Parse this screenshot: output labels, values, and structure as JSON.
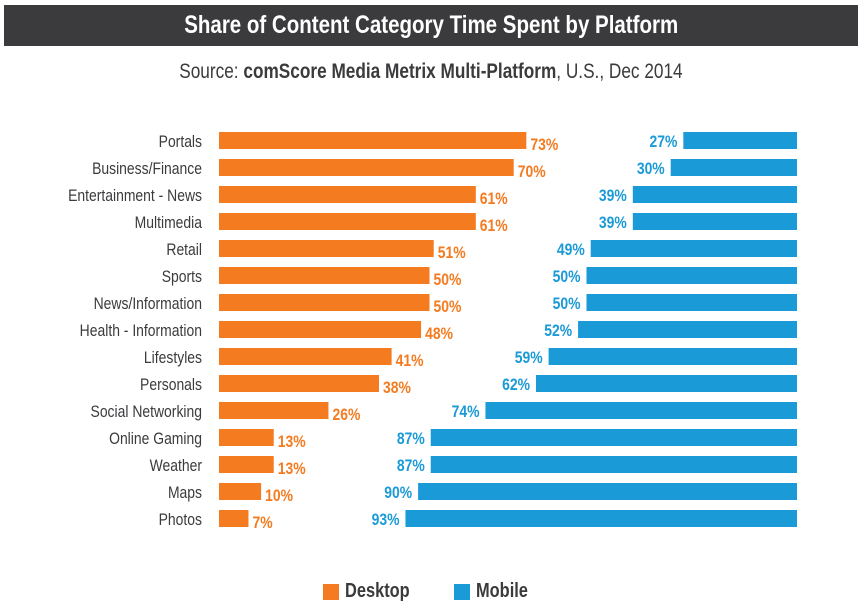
{
  "chart_data": {
    "type": "bar",
    "stacked": true,
    "orientation": "horizontal",
    "title": "Share of Content Category Time Spent by Platform",
    "subtitle": {
      "prefix": "Source: ",
      "source": "comScore Media Metrix Multi-Platform",
      "suffix": ", U.S., Dec 2014"
    },
    "categories": [
      "Portals",
      "Business/Finance",
      "Entertainment - News",
      "Multimedia",
      "Retail",
      "Sports",
      "News/Information",
      "Health - Information",
      "Lifestyles",
      "Personals",
      "Social Networking",
      "Online Gaming",
      "Weather",
      "Maps",
      "Photos"
    ],
    "series": [
      {
        "name": "Desktop",
        "color": "#f47b20",
        "values": [
          73,
          70,
          61,
          61,
          51,
          50,
          50,
          48,
          41,
          38,
          26,
          13,
          13,
          10,
          7
        ]
      },
      {
        "name": "Mobile",
        "color": "#1a9ad6",
        "values": [
          27,
          30,
          39,
          39,
          49,
          50,
          50,
          52,
          59,
          62,
          74,
          87,
          87,
          90,
          93
        ]
      }
    ],
    "value_suffix": "%",
    "grid": false,
    "legend_position": "bottom"
  }
}
